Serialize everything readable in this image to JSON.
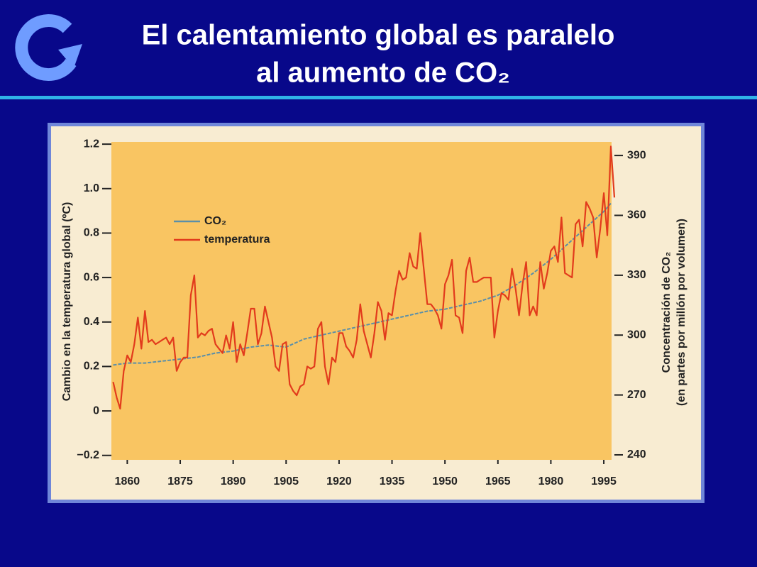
{
  "chart_data": {
    "type": "line",
    "title": [
      "El calentamiento global es paralelo",
      "al aumento de CO₂"
    ],
    "ylabel": "Cambio en la temperatura global (ºC)",
    "y2label": [
      "Concentración de CO₂",
      "(en partes por millón por volumen)"
    ],
    "xlim": [
      1855.5,
      1997.2
    ],
    "xticks": [
      1860,
      1875,
      1890,
      1905,
      1920,
      1935,
      1950,
      1965,
      1980,
      1995
    ],
    "ylim": [
      -0.22,
      1.21
    ],
    "yticks": [
      {
        "value": -0.2,
        "label": "−0.2"
      },
      0,
      0.2,
      0.4,
      0.6,
      0.8,
      {
        "value": 1,
        "label": "1.0"
      },
      1.2
    ],
    "y2lim": [
      237.5,
      396.8
    ],
    "y2ticks": [
      240,
      270,
      300,
      330,
      360,
      390
    ],
    "legend": "upper left",
    "series": [
      {
        "name": "CO₂",
        "color": "#5b8fa8",
        "axis": "y2",
        "x": [
          1856,
          1860,
          1865,
          1870,
          1875,
          1880,
          1885,
          1890,
          1895,
          1900,
          1905,
          1910,
          1915,
          1920,
          1925,
          1930,
          1935,
          1940,
          1945,
          1950,
          1955,
          1960,
          1965,
          1970,
          1975,
          1980,
          1985,
          1990,
          1995,
          1997
        ],
        "values": [
          285,
          286,
          286,
          287,
          288,
          289,
          291,
          292,
          294,
          295,
          294,
          298,
          300,
          302,
          304,
          306,
          308,
          310,
          312,
          313,
          315,
          317,
          320,
          325,
          331,
          338,
          346,
          354,
          362,
          366
        ]
      },
      {
        "name": "temperatura",
        "color": "#e23b1c",
        "x": [
          1856,
          1857,
          1858,
          1859,
          1860,
          1861,
          1862,
          1863,
          1864,
          1865,
          1866,
          1867,
          1868,
          1869,
          1870,
          1871,
          1872,
          1873,
          1874,
          1875,
          1876,
          1877,
          1878,
          1879,
          1880,
          1881,
          1882,
          1883,
          1884,
          1885,
          1886,
          1887,
          1888,
          1889,
          1890,
          1891,
          1892,
          1893,
          1894,
          1895,
          1896,
          1897,
          1898,
          1899,
          1900,
          1901,
          1902,
          1903,
          1904,
          1905,
          1906,
          1907,
          1908,
          1909,
          1910,
          1911,
          1912,
          1913,
          1914,
          1915,
          1916,
          1917,
          1918,
          1919,
          1920,
          1921,
          1922,
          1923,
          1924,
          1925,
          1926,
          1927,
          1928,
          1929,
          1930,
          1931,
          1932,
          1933,
          1934,
          1935,
          1936,
          1937,
          1938,
          1939,
          1940,
          1941,
          1942,
          1943,
          1944,
          1945,
          1946,
          1947,
          1948,
          1949,
          1950,
          1951,
          1952,
          1953,
          1954,
          1955,
          1956,
          1957,
          1958,
          1959,
          1960,
          1961,
          1962,
          1963,
          1964,
          1965,
          1966,
          1967,
          1968,
          1969,
          1970,
          1971,
          1972,
          1973,
          1974,
          1975,
          1976,
          1977,
          1978,
          1979,
          1980,
          1981,
          1982,
          1983,
          1984,
          1985,
          1986,
          1987,
          1988,
          1989,
          1990,
          1991,
          1992,
          1993,
          1994,
          1995,
          1996,
          1997,
          1998
        ],
        "values": [
          0.13,
          0.06,
          0.01,
          0.18,
          0.25,
          0.22,
          0.3,
          0.42,
          0.28,
          0.45,
          0.31,
          0.32,
          0.3,
          0.31,
          0.32,
          0.33,
          0.3,
          0.33,
          0.18,
          0.22,
          0.24,
          0.24,
          0.52,
          0.61,
          0.33,
          0.35,
          0.34,
          0.36,
          0.37,
          0.3,
          0.28,
          0.26,
          0.34,
          0.28,
          0.4,
          0.22,
          0.3,
          0.25,
          0.35,
          0.46,
          0.46,
          0.3,
          0.35,
          0.47,
          0.4,
          0.33,
          0.2,
          0.18,
          0.3,
          0.31,
          0.12,
          0.09,
          0.07,
          0.11,
          0.12,
          0.2,
          0.19,
          0.2,
          0.37,
          0.4,
          0.2,
          0.12,
          0.24,
          0.22,
          0.35,
          0.35,
          0.29,
          0.27,
          0.24,
          0.32,
          0.48,
          0.36,
          0.3,
          0.24,
          0.35,
          0.49,
          0.45,
          0.32,
          0.44,
          0.43,
          0.54,
          0.63,
          0.59,
          0.6,
          0.71,
          0.65,
          0.64,
          0.8,
          0.64,
          0.48,
          0.48,
          0.46,
          0.43,
          0.37,
          0.57,
          0.61,
          0.68,
          0.43,
          0.42,
          0.35,
          0.63,
          0.69,
          0.58,
          0.58,
          0.59,
          0.6,
          0.6,
          0.6,
          0.33,
          0.45,
          0.53,
          0.52,
          0.5,
          0.64,
          0.55,
          0.43,
          0.57,
          0.67,
          0.43,
          0.47,
          0.43,
          0.67,
          0.55,
          0.62,
          0.72,
          0.74,
          0.67,
          0.87,
          0.62,
          0.61,
          0.6,
          0.84,
          0.86,
          0.74,
          0.94,
          0.91,
          0.87,
          0.69,
          0.82,
          0.98,
          0.79,
          1.19,
          0.96
        ]
      }
    ]
  }
}
